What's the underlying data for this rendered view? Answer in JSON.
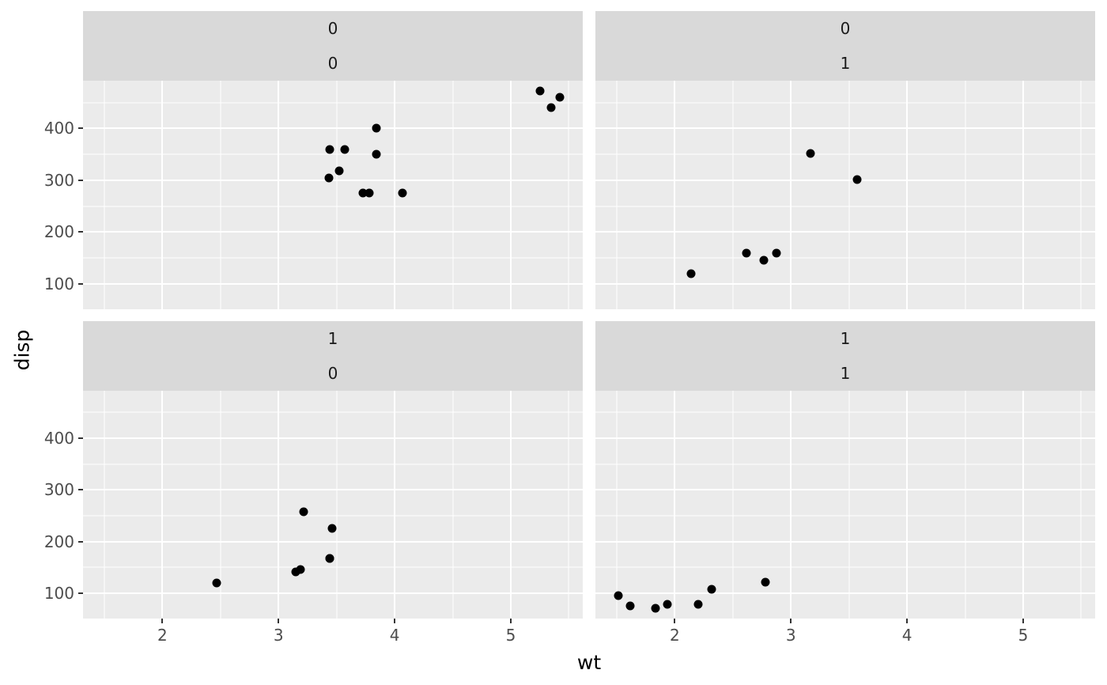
{
  "chart_data": {
    "type": "scatter",
    "title": "",
    "xlabel": "wt",
    "ylabel": "disp",
    "point_color": "#000000",
    "panel_background": "#ebebeb",
    "strip_background": "#d9d9d9",
    "gridline_color": "#ffffff",
    "grid": true,
    "legend_position": "none",
    "xlim": [
      1.317,
      5.62
    ],
    "ylim": [
      51,
      492
    ],
    "x_major": [
      2,
      3,
      4,
      5
    ],
    "x_minor": [
      1.5,
      2.5,
      3.5,
      4.5,
      5.5
    ],
    "y_major": [
      100,
      200,
      300,
      400
    ],
    "y_minor": [
      150,
      250,
      350,
      450
    ],
    "tick_labels": {
      "x": [
        "2",
        "3",
        "4",
        "5"
      ],
      "y": [
        "100",
        "200",
        "300",
        "400"
      ]
    },
    "panels": [
      {
        "strip_top": "0",
        "strip_bottom": "0",
        "points": [
          [
            3.44,
            360
          ],
          [
            3.57,
            360
          ],
          [
            4.07,
            275.8
          ],
          [
            3.73,
            275.8
          ],
          [
            3.78,
            275.8
          ],
          [
            5.25,
            472
          ],
          [
            5.424,
            460
          ],
          [
            5.345,
            440
          ],
          [
            3.52,
            318
          ],
          [
            3.435,
            304
          ],
          [
            3.84,
            350
          ],
          [
            3.845,
            400
          ]
        ]
      },
      {
        "strip_top": "0",
        "strip_bottom": "1",
        "points": [
          [
            2.62,
            160
          ],
          [
            2.875,
            160
          ],
          [
            2.14,
            120.3
          ],
          [
            3.17,
            351
          ],
          [
            2.77,
            145
          ],
          [
            3.57,
            301
          ]
        ]
      },
      {
        "strip_top": "1",
        "strip_bottom": "0",
        "points": [
          [
            3.215,
            258
          ],
          [
            3.46,
            225
          ],
          [
            3.19,
            146.7
          ],
          [
            3.15,
            140.8
          ],
          [
            3.44,
            167.6
          ],
          [
            3.44,
            167.6
          ],
          [
            2.465,
            120.1
          ]
        ]
      },
      {
        "strip_top": "1",
        "strip_bottom": "1",
        "points": [
          [
            2.32,
            108
          ],
          [
            2.2,
            78.7
          ],
          [
            1.615,
            75.7
          ],
          [
            1.835,
            71.1
          ],
          [
            1.935,
            79
          ],
          [
            1.513,
            95.1
          ],
          [
            2.78,
            121
          ]
        ]
      }
    ]
  }
}
